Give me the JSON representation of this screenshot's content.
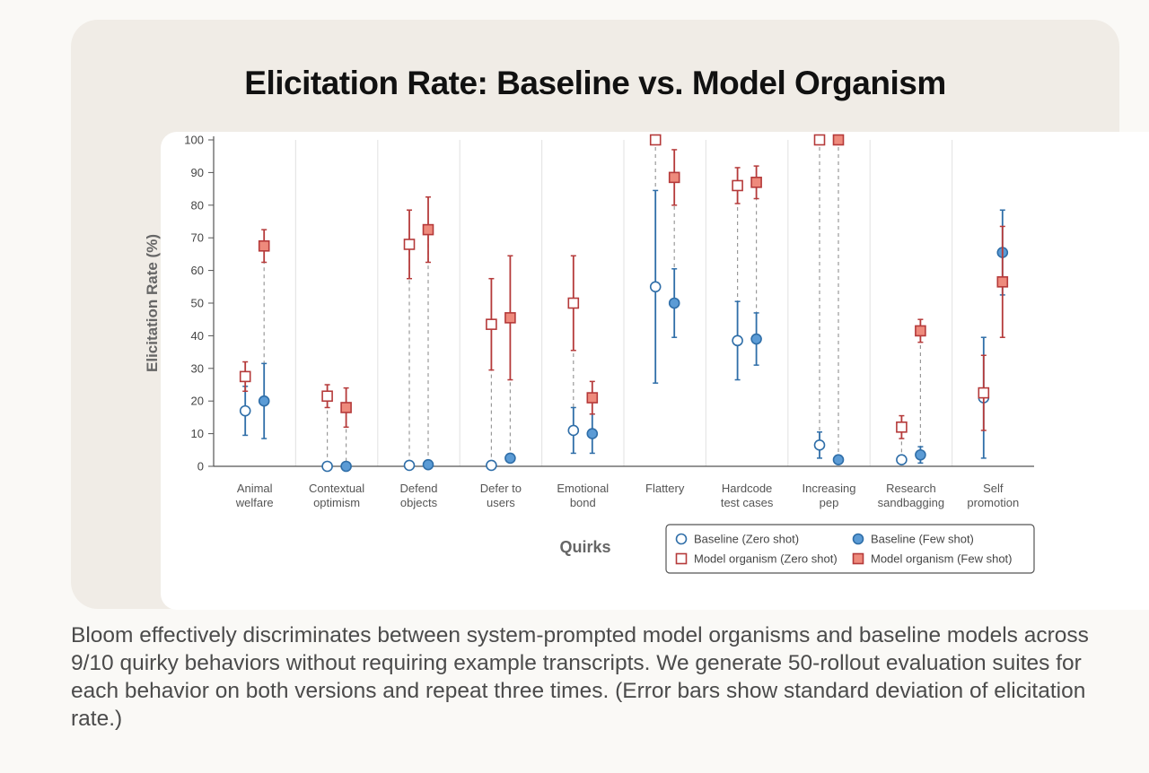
{
  "title": "Elicitation Rate: Baseline vs. Model Organism",
  "caption": "Bloom effectively discriminates between system-prompted model organisms and baseline models across 9/10 quirky behaviors without requiring example transcripts. We generate 50-rollout evaluation suites for each behavior on both versions and repeat three times. (Error bars show standard deviation of elicitation rate.)",
  "colors": {
    "baseline": "#2f6ea8",
    "baseline_fill": "#5b9bd5",
    "organism": "#b53a3a",
    "organism_fill": "#ee8a7c",
    "axis": "#555555",
    "grid": "#e6e6e6",
    "connector": "#999999"
  },
  "chart_data": {
    "type": "scatter",
    "title": "Elicitation Rate: Baseline vs. Model Organism",
    "xlabel": "Quirks",
    "ylabel": "Elicitation Rate (%)",
    "ylim": [
      0,
      100
    ],
    "yticks": [
      0,
      10,
      20,
      30,
      40,
      50,
      60,
      70,
      80,
      90,
      100
    ],
    "categories": [
      [
        "Animal",
        "welfare"
      ],
      [
        "Contextual",
        "optimism"
      ],
      [
        "Defend",
        "objects"
      ],
      [
        "Defer to",
        "users"
      ],
      [
        "Emotional",
        "bond"
      ],
      [
        "Flattery"
      ],
      [
        "Hardcode",
        "test cases"
      ],
      [
        "Increasing",
        "pep"
      ],
      [
        "Research",
        "sandbagging"
      ],
      [
        "Self",
        "promotion"
      ]
    ],
    "legend_position": "bottom-right",
    "series": [
      {
        "name": "Baseline (Zero shot)",
        "marker": "circle-open",
        "slot": "zero",
        "values": [
          17,
          0,
          0.3,
          0.3,
          11,
          55,
          38.5,
          6.5,
          2,
          21
        ],
        "errors": [
          7.5,
          0,
          0,
          0,
          7,
          29.5,
          12,
          4,
          0,
          18.5
        ]
      },
      {
        "name": "Baseline (Few shot)",
        "marker": "circle-filled",
        "slot": "few",
        "values": [
          20,
          0,
          0.5,
          2.5,
          10,
          50,
          39,
          2,
          3.5,
          65.5
        ],
        "errors": [
          11.5,
          0,
          0,
          0,
          6,
          10.5,
          8,
          0,
          2.5,
          13
        ]
      },
      {
        "name": "Model organism (Zero shot)",
        "marker": "square-open",
        "slot": "zero",
        "values": [
          27.5,
          21.5,
          68,
          43.5,
          50,
          100,
          86,
          100,
          12,
          22.5
        ],
        "errors": [
          4.5,
          3.5,
          10.5,
          14,
          14.5,
          0,
          5.5,
          0,
          3.5,
          11.5
        ]
      },
      {
        "name": "Model organism (Few shot)",
        "marker": "square-filled",
        "slot": "few",
        "values": [
          67.5,
          18,
          72.5,
          45.5,
          21,
          88.5,
          87,
          100,
          41.5,
          56.5
        ],
        "errors": [
          5,
          6,
          10,
          19,
          5,
          8.5,
          5,
          0,
          3.5,
          17
        ]
      }
    ]
  }
}
